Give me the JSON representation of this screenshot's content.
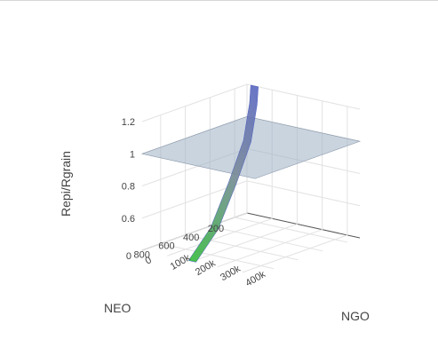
{
  "chart_data": {
    "type": "surface3d",
    "title": "",
    "axes": {
      "x": {
        "label": "NGO",
        "range": [
          0,
          450000
        ],
        "ticks": [
          0,
          100000,
          200000,
          300000,
          400000
        ],
        "tick_labels": [
          "0",
          "100k",
          "200k",
          "300k",
          "400k"
        ]
      },
      "y": {
        "label": "NEO",
        "range": [
          100,
          950
        ],
        "ticks": [
          200,
          400,
          600,
          800
        ],
        "tick_labels": [
          "200",
          "400",
          "600",
          "800"
        ]
      },
      "z": {
        "label": "Repi/Rgrain",
        "range": [
          0.4,
          1.2
        ],
        "ticks": [
          0.6,
          0.8,
          1.0,
          1.2
        ],
        "tick_labels": [
          "0.6",
          "0.8",
          "1",
          "1.2"
        ],
        "extra_tick_label": "0"
      }
    },
    "series": [
      {
        "kind": "reference-plane",
        "z": 1.0,
        "color": "#9fb0c4",
        "opacity": 0.55
      },
      {
        "kind": "surface",
        "colorscale": [
          "#22cc22",
          "#3a44f0"
        ],
        "curve_points": [
          {
            "x": 200000,
            "y": 950,
            "z": 0.4
          },
          {
            "x": 140000,
            "y": 650,
            "z": 0.5
          },
          {
            "x": 90000,
            "y": 400,
            "z": 0.7
          },
          {
            "x": 60000,
            "y": 220,
            "z": 0.9
          },
          {
            "x": 40000,
            "y": 130,
            "z": 1.1
          },
          {
            "x": 30000,
            "y": 100,
            "z": 1.2
          }
        ],
        "width_x": 30000
      }
    ],
    "grid": true,
    "legend": "none"
  }
}
